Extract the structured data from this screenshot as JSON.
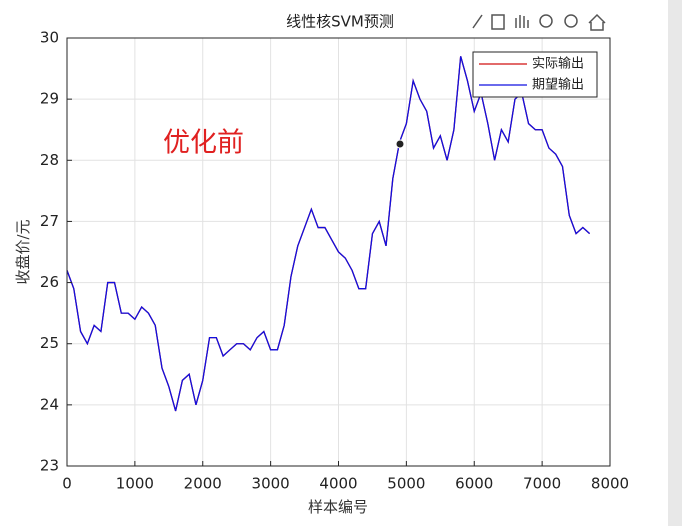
{
  "chart_data": {
    "type": "line",
    "title": "线性核SVM预测",
    "xlabel": "样本编号",
    "ylabel": "收盘价/元",
    "annotation": "优化前",
    "annotation_color": "#e02020",
    "x": [
      0,
      100,
      200,
      300,
      400,
      500,
      600,
      700,
      800,
      900,
      1000,
      1100,
      1200,
      1300,
      1400,
      1500,
      1600,
      1700,
      1800,
      1900,
      2000,
      2100,
      2200,
      2300,
      2400,
      2500,
      2600,
      2700,
      2800,
      2900,
      3000,
      3100,
      3200,
      3300,
      3400,
      3500,
      3600,
      3700,
      3800,
      3900,
      4000,
      4100,
      4200,
      4300,
      4400,
      4500,
      4600,
      4700,
      4800,
      4900,
      5000,
      5100,
      5200,
      5300,
      5400,
      5500,
      5600,
      5700,
      5800,
      5900,
      6000,
      6100,
      6200,
      6300,
      6400,
      6500,
      6600,
      6700,
      6800,
      6900,
      7000,
      7100,
      7200,
      7300,
      7400,
      7500,
      7600,
      7700
    ],
    "series": [
      {
        "name": "实际输出",
        "color": "#d01010",
        "values": [
          26.2,
          25.9,
          25.2,
          25.0,
          25.3,
          25.2,
          26.0,
          26.0,
          25.5,
          25.5,
          25.4,
          25.6,
          25.5,
          25.3,
          24.6,
          24.3,
          23.9,
          24.4,
          24.5,
          24.0,
          24.4,
          25.1,
          25.1,
          24.8,
          24.9,
          25.0,
          25.0,
          24.9,
          25.1,
          25.2,
          24.9,
          24.9,
          25.3,
          26.1,
          26.6,
          26.9,
          27.2,
          26.9,
          26.9,
          26.7,
          26.5,
          26.4,
          26.2,
          25.9,
          25.9,
          26.8,
          27.0,
          26.6,
          27.7,
          28.3,
          28.6,
          29.3,
          29.0,
          28.8,
          28.2,
          28.4,
          28.0,
          28.5,
          29.7,
          29.3,
          28.8,
          29.1,
          28.6,
          28.0,
          28.5,
          28.3,
          29.0,
          29.1,
          28.6,
          28.5,
          28.5,
          28.2,
          28.1,
          27.9,
          27.1,
          26.8,
          26.9,
          26.8
        ]
      },
      {
        "name": "期望输出",
        "color": "#1010e0",
        "values": [
          26.2,
          25.9,
          25.2,
          25.0,
          25.3,
          25.2,
          26.0,
          26.0,
          25.5,
          25.5,
          25.4,
          25.6,
          25.5,
          25.3,
          24.6,
          24.3,
          23.9,
          24.4,
          24.5,
          24.0,
          24.4,
          25.1,
          25.1,
          24.8,
          24.9,
          25.0,
          25.0,
          24.9,
          25.1,
          25.2,
          24.9,
          24.9,
          25.3,
          26.1,
          26.6,
          26.9,
          27.2,
          26.9,
          26.9,
          26.7,
          26.5,
          26.4,
          26.2,
          25.9,
          25.9,
          26.8,
          27.0,
          26.6,
          27.7,
          28.3,
          28.6,
          29.3,
          29.0,
          28.8,
          28.2,
          28.4,
          28.0,
          28.5,
          29.7,
          29.3,
          28.8,
          29.1,
          28.6,
          28.0,
          28.5,
          28.3,
          29.0,
          29.1,
          28.6,
          28.5,
          28.5,
          28.2,
          28.1,
          27.9,
          27.1,
          26.8,
          26.9,
          26.8
        ]
      }
    ],
    "xlim": [
      0,
      8000
    ],
    "xticks": [
      0,
      1000,
      2000,
      3000,
      4000,
      5000,
      6000,
      7000,
      8000
    ],
    "ylim": [
      23,
      30
    ],
    "yticks": [
      23,
      24,
      25,
      26,
      27,
      28,
      29,
      30
    ],
    "grid": true,
    "legend": "upper right"
  }
}
